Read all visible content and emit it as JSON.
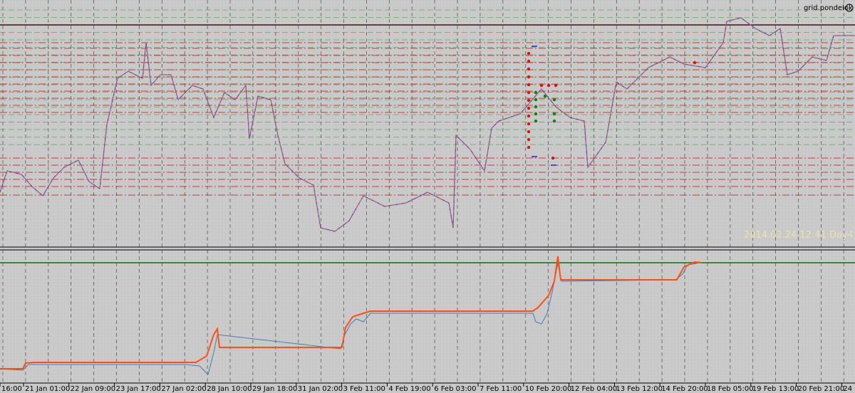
{
  "header": {
    "title": "grid.pondelok",
    "watermark": "2014.02.24 12:41 Day4"
  },
  "time_axis": {
    "labels": [
      "16:00",
      "21 Jan 01:00",
      "22 Jan 09:00",
      "23 Jan 17:00",
      "27 Jan 02:00",
      "28 Jan 10:00",
      "29 Jan 18:00",
      "31 Jan 02:00",
      "3 Feb 11:00",
      "4 Feb 19:00",
      "6 Feb 03:00",
      "7 Feb 11:00",
      "10 Feb 20:00",
      "12 Feb 04:00",
      "13 Feb 12:00",
      "14 Feb 20:00",
      "18 Feb 05:00",
      "19 Feb 13:00",
      "20 Feb 21:00",
      "24"
    ]
  }
}
